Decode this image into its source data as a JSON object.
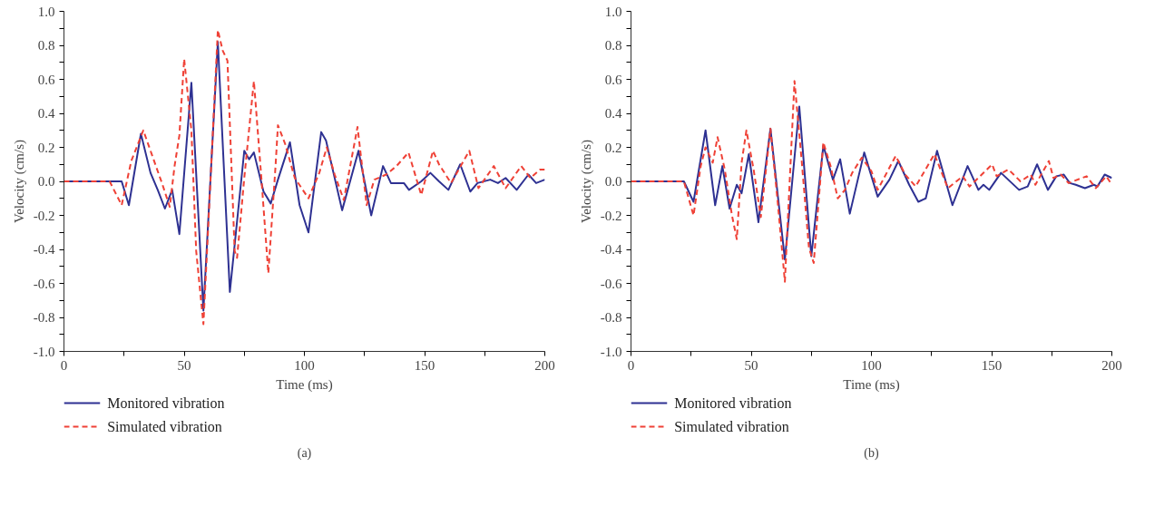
{
  "chart_data": [
    {
      "type": "line",
      "xlabel": "Time (ms)",
      "ylabel": "Velocity (cm/s)",
      "annotations": [
        "(a)"
      ],
      "legend": "bottom",
      "grid": false,
      "marker": "none",
      "xlim": [
        0,
        200
      ],
      "ylim": [
        -1.0,
        1.0
      ],
      "xticks": [
        0,
        {
          "value": 25,
          "label": null
        },
        50,
        {
          "value": 75,
          "label": null
        },
        100,
        {
          "value": 125,
          "label": null
        },
        150,
        {
          "value": 175,
          "label": null
        },
        200
      ],
      "yticks": [
        {
          "value": -1.0,
          "label": "-1.0"
        },
        {
          "value": -0.9,
          "label": null
        },
        {
          "value": -0.8,
          "label": "-0.8"
        },
        {
          "value": -0.7,
          "label": null
        },
        {
          "value": -0.6,
          "label": "-0.6"
        },
        {
          "value": -0.5,
          "label": null
        },
        {
          "value": -0.4,
          "label": "-0.4"
        },
        {
          "value": -0.3,
          "label": null
        },
        {
          "value": -0.2,
          "label": "-0.2"
        },
        {
          "value": -0.1,
          "label": null
        },
        {
          "value": 0.0,
          "label": "0.0"
        },
        {
          "value": 0.1,
          "label": null
        },
        {
          "value": 0.2,
          "label": "0.2"
        },
        {
          "value": 0.3,
          "label": null
        },
        {
          "value": 0.4,
          "label": "0.4"
        },
        {
          "value": 0.5,
          "label": null
        },
        {
          "value": 0.6,
          "label": "0.6"
        },
        {
          "value": 0.7,
          "label": null
        },
        {
          "value": 0.8,
          "label": "0.8"
        },
        {
          "value": 0.9,
          "label": null
        },
        {
          "value": 1.0,
          "label": "1.0"
        }
      ],
      "series": [
        {
          "name": "Monitored vibration",
          "color": "#2e3192",
          "line_style": "solid",
          "x": [
            0,
            24,
            27,
            32,
            36,
            39,
            42,
            45,
            48,
            53,
            58,
            64,
            69,
            75,
            77,
            79,
            83,
            86,
            89,
            94,
            98,
            101.7,
            107,
            109,
            115.7,
            122.5,
            127.8,
            132.7,
            136,
            141.4,
            143.5,
            148.6,
            152.4,
            156,
            159.9,
            164.8,
            169,
            172,
            177.3,
            180.5,
            183.7,
            188.3,
            193.2,
            196.4,
            200
          ],
          "values": [
            0,
            0,
            -0.14,
            0.28,
            0.05,
            -0.05,
            -0.16,
            -0.05,
            -0.31,
            0.58,
            -0.76,
            0.82,
            -0.65,
            0.18,
            0.13,
            0.17,
            -0.06,
            -0.13,
            0.01,
            0.23,
            -0.14,
            -0.3,
            0.29,
            0.24,
            -0.17,
            0.18,
            -0.2,
            0.09,
            -0.01,
            -0.01,
            -0.05,
            0.0,
            0.05,
            0.0,
            -0.05,
            0.1,
            -0.06,
            -0.01,
            0.01,
            -0.01,
            0.02,
            -0.05,
            0.04,
            -0.01,
            0.01
          ]
        },
        {
          "name": "Simulated vibration",
          "color": "#ef4136",
          "line_style": "dashed",
          "x": [
            0,
            19,
            24,
            28,
            33,
            37,
            41,
            44,
            46,
            48,
            50,
            53,
            55,
            58,
            61,
            64,
            66,
            68,
            71,
            72,
            75,
            79,
            82,
            85,
            88,
            89,
            92,
            96,
            101.7,
            106.2,
            109.3,
            112.6,
            116.4,
            122.1,
            125.9,
            129.1,
            134,
            138.3,
            143.3,
            148.6,
            153.5,
            156,
            161,
            168.6,
            172.4,
            178.8,
            183.7,
            190.2,
            194,
            198.1,
            200
          ],
          "values": [
            0,
            0,
            -0.14,
            0.12,
            0.3,
            0.14,
            -0.02,
            -0.15,
            0.09,
            0.27,
            0.72,
            0.3,
            -0.41,
            -0.84,
            0.02,
            0.89,
            0.77,
            0.71,
            -0.41,
            -0.45,
            0.02,
            0.59,
            0.04,
            -0.54,
            0.09,
            0.33,
            0.22,
            0.02,
            -0.1,
            0.05,
            0.2,
            0.04,
            -0.11,
            0.32,
            -0.14,
            0.01,
            0.04,
            0.09,
            0.17,
            -0.08,
            0.18,
            0.1,
            -0.01,
            0.18,
            -0.04,
            0.09,
            -0.04,
            0.09,
            0.02,
            0.07,
            0.07
          ]
        }
      ]
    },
    {
      "type": "line",
      "xlabel": "Time (ms)",
      "ylabel": "Velocity (cm/s)",
      "annotations": [
        "(b)"
      ],
      "legend": "bottom",
      "grid": false,
      "marker": "none",
      "xlim": [
        0,
        200
      ],
      "ylim": [
        -1.0,
        1.0
      ],
      "xticks": [
        0,
        {
          "value": 25,
          "label": null
        },
        50,
        {
          "value": 75,
          "label": null
        },
        100,
        {
          "value": 125,
          "label": null
        },
        150,
        {
          "value": 175,
          "label": null
        },
        200
      ],
      "yticks": [
        {
          "value": -1.0,
          "label": "-1.0"
        },
        {
          "value": -0.9,
          "label": null
        },
        {
          "value": -0.8,
          "label": "-0.8"
        },
        {
          "value": -0.7,
          "label": null
        },
        {
          "value": -0.6,
          "label": "-0.6"
        },
        {
          "value": -0.5,
          "label": null
        },
        {
          "value": -0.4,
          "label": "-0.4"
        },
        {
          "value": -0.3,
          "label": null
        },
        {
          "value": -0.2,
          "label": "-0.2"
        },
        {
          "value": -0.1,
          "label": null
        },
        {
          "value": 0.0,
          "label": "0.0"
        },
        {
          "value": 0.1,
          "label": null
        },
        {
          "value": 0.2,
          "label": "0.2"
        },
        {
          "value": 0.3,
          "label": null
        },
        {
          "value": 0.4,
          "label": "0.4"
        },
        {
          "value": 0.5,
          "label": null
        },
        {
          "value": 0.6,
          "label": "0.6"
        },
        {
          "value": 0.7,
          "label": null
        },
        {
          "value": 0.8,
          "label": "0.8"
        },
        {
          "value": 0.9,
          "label": null
        },
        {
          "value": 1.0,
          "label": "1.0"
        }
      ],
      "series": [
        {
          "name": "Monitored vibration",
          "color": "#2e3192",
          "line_style": "solid",
          "x": [
            0,
            22,
            26,
            31,
            35,
            38,
            41,
            44,
            46,
            49,
            53,
            58,
            64,
            70,
            75,
            80,
            84,
            87,
            91,
            97,
            102.6,
            107.5,
            111.2,
            115.7,
            119.5,
            122.6,
            127.3,
            133.7,
            140,
            144.5,
            146.6,
            149,
            153.9,
            161.4,
            165,
            168.9,
            173.4,
            176.9,
            180,
            182.5,
            185,
            188.8,
            192.5,
            194,
            197,
            200
          ],
          "values": [
            0,
            0,
            -0.12,
            0.3,
            -0.14,
            0.09,
            -0.16,
            -0.02,
            -0.07,
            0.16,
            -0.24,
            0.31,
            -0.46,
            0.44,
            -0.44,
            0.21,
            0.01,
            0.13,
            -0.19,
            0.17,
            -0.09,
            0.01,
            0.12,
            -0.02,
            -0.12,
            -0.1,
            0.18,
            -0.14,
            0.09,
            -0.05,
            -0.02,
            -0.05,
            0.05,
            -0.05,
            -0.03,
            0.1,
            -0.05,
            0.03,
            0.04,
            -0.01,
            -0.02,
            -0.04,
            -0.02,
            -0.03,
            0.04,
            0.02
          ]
        },
        {
          "name": "Simulated vibration",
          "color": "#ef4136",
          "line_style": "dashed",
          "x": [
            0,
            22,
            26,
            29,
            31,
            34,
            36,
            39,
            42,
            44,
            46,
            48,
            51,
            54,
            58,
            61,
            64,
            68,
            71,
            74,
            76,
            80,
            83,
            86,
            89,
            92,
            96,
            100,
            102.6,
            110.1,
            114,
            118.4,
            126.2,
            131.8,
            138,
            140.8,
            150.2,
            152.1,
            157,
            162,
            166.3,
            168.2,
            173.8,
            175.7,
            178.8,
            182,
            189.5,
            193.3,
            197.7,
            200
          ],
          "values": [
            0,
            0,
            -0.2,
            0.09,
            0.2,
            0.11,
            0.26,
            0.07,
            -0.2,
            -0.34,
            0.11,
            0.3,
            0.07,
            -0.21,
            0.31,
            -0.12,
            -0.59,
            0.59,
            0.12,
            -0.39,
            -0.48,
            0.23,
            0.09,
            -0.1,
            -0.05,
            0.05,
            0.14,
            0.06,
            -0.05,
            0.15,
            0.04,
            -0.03,
            0.16,
            -0.04,
            0.03,
            -0.03,
            0.1,
            0.03,
            0.07,
            0.0,
            0.04,
            -0.02,
            0.12,
            0.02,
            0.04,
            -0.01,
            0.03,
            -0.04,
            0.03,
            -0.02
          ]
        }
      ]
    }
  ]
}
